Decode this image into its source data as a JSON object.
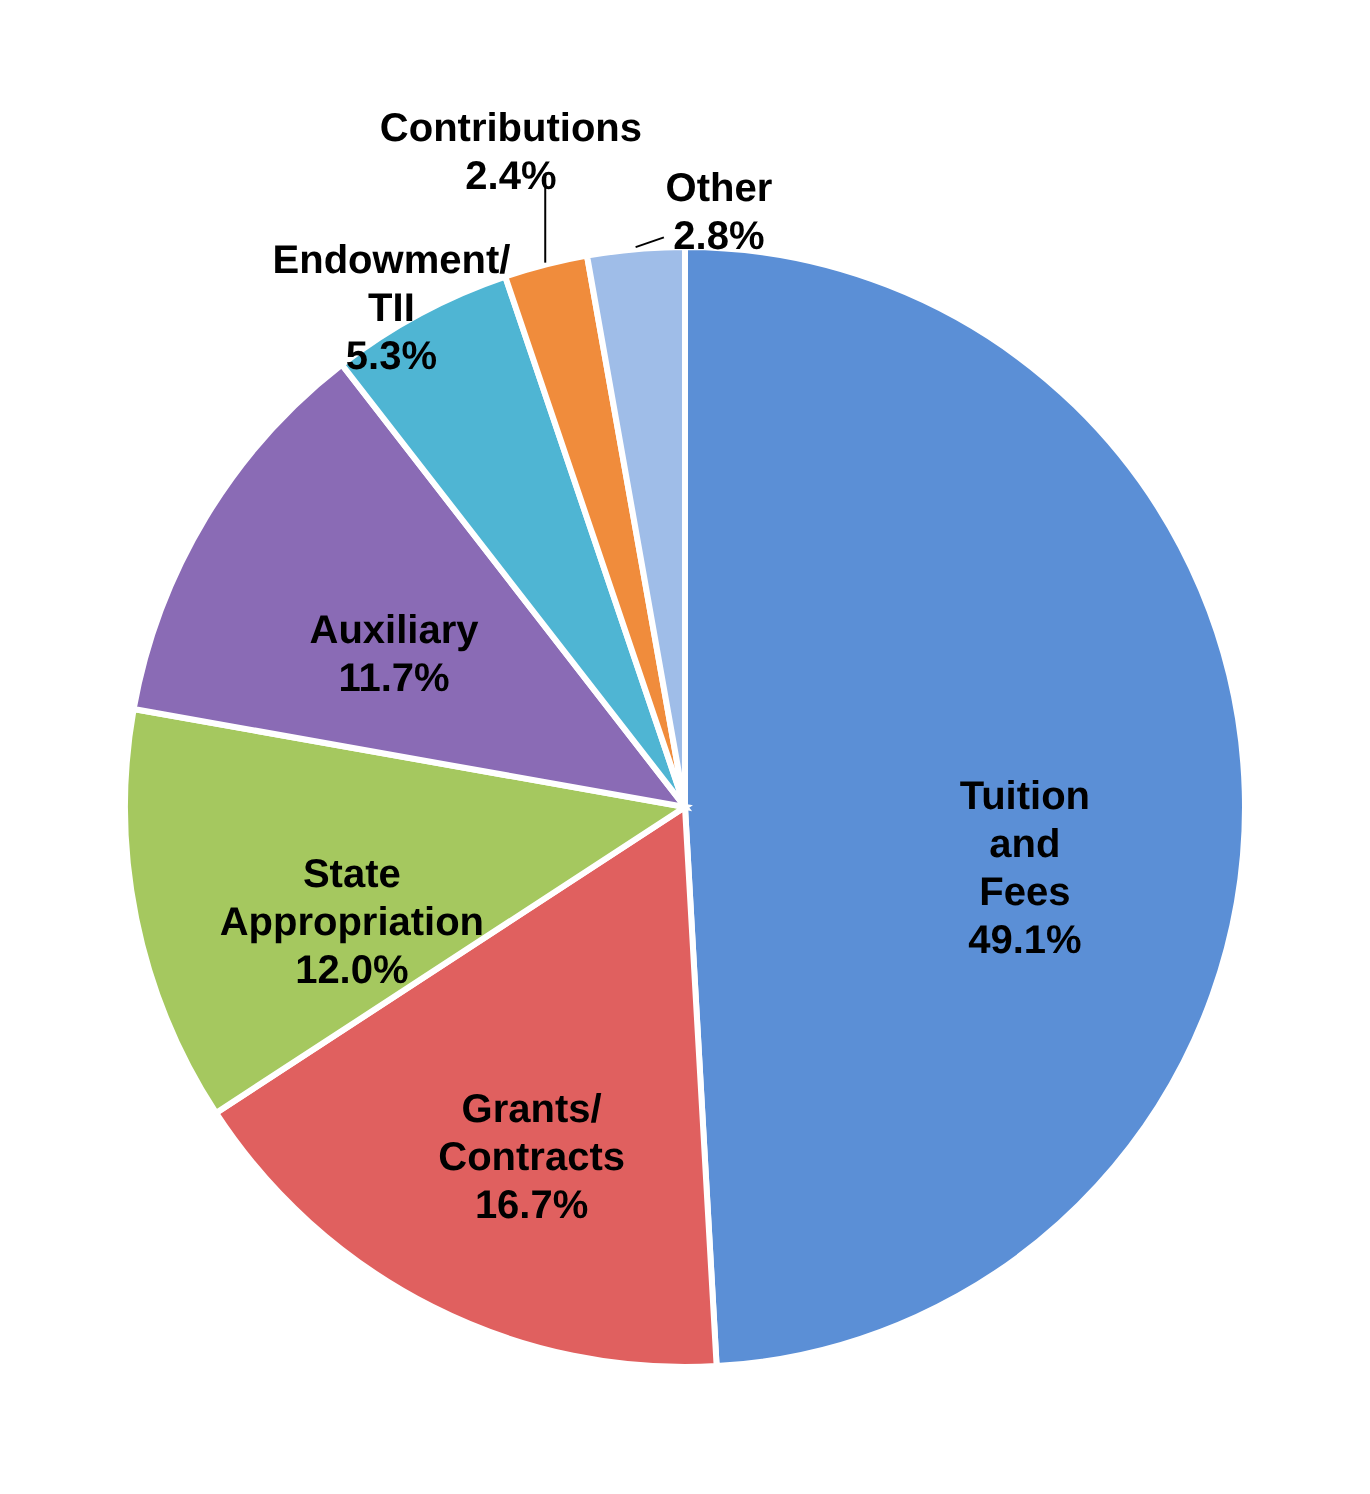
{
  "chart_data": {
    "type": "pie",
    "categories": [
      "Tuition and Fees",
      "Grants/ Contracts",
      "State Appropriation",
      "Auxiliary",
      "Endowment/ TII",
      "Contributions",
      "Other"
    ],
    "values": [
      49.1,
      16.7,
      12.0,
      11.7,
      5.3,
      2.4,
      2.8
    ],
    "value_labels": [
      "49.1%",
      "16.7%",
      "12.0%",
      "11.7%",
      "5.3%",
      "2.4%",
      "2.8%"
    ],
    "colors": [
      "#5b8fd6",
      "#e0605f",
      "#a5c85f",
      "#8a6bb5",
      "#4fb5d3",
      "#f08c3c",
      "#9fbde8"
    ]
  }
}
